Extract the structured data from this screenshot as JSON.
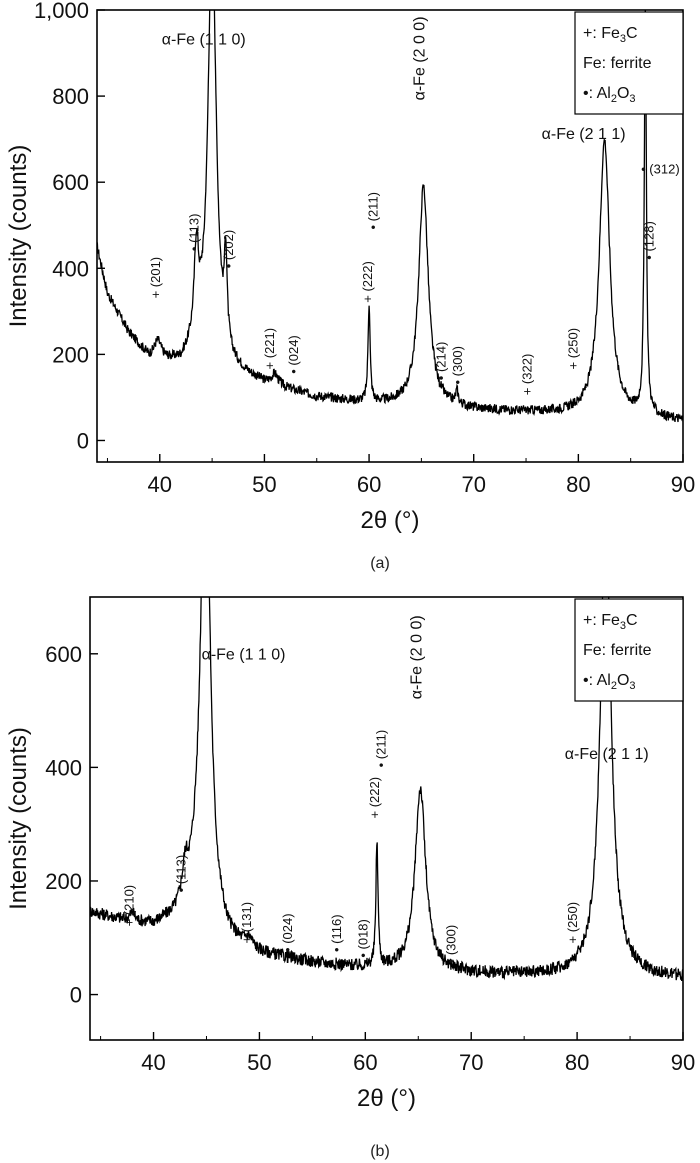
{
  "chart_data": [
    {
      "type": "line",
      "panel": "(a)",
      "xlabel": "2θ (°)",
      "ylabel": "Intensity (counts)",
      "xlim": [
        34,
        90
      ],
      "ylim": [
        -50,
        1000
      ],
      "xticks": [
        40,
        50,
        60,
        70,
        80,
        90
      ],
      "yticks": [
        0,
        200,
        400,
        600,
        800,
        1000
      ],
      "ytick_labels": [
        "0",
        "200",
        "400",
        "600",
        "800",
        "1,000"
      ],
      "grid": false,
      "legend_position": "top-right",
      "legend": [
        {
          "symbol": "+",
          "pre": ": Fe",
          "sub": "3",
          "post": "C"
        },
        {
          "symbol": "Fe",
          "pre": ": ferrite",
          "sub": "",
          "post": ""
        },
        {
          "symbol": "•",
          "pre": ": Al",
          "sub": "2",
          "post": "O",
          "sub2": "3"
        }
      ],
      "peaks": [
        {
          "x": 45.0,
          "y": 1000,
          "w": 0.45
        },
        {
          "x": 65.2,
          "y": 510,
          "w": 0.55
        },
        {
          "x": 82.5,
          "y": 640,
          "w": 0.6
        },
        {
          "x": 86.4,
          "y": 940,
          "w": 0.12
        },
        {
          "x": 60.0,
          "y": 230,
          "w": 0.12
        },
        {
          "x": 46.3,
          "y": 200,
          "w": 0.15
        },
        {
          "x": 43.5,
          "y": 200,
          "w": 0.25
        },
        {
          "x": 39.8,
          "y": 40,
          "w": 0.4
        },
        {
          "x": 68.4,
          "y": 30,
          "w": 0.15
        },
        {
          "x": 51.0,
          "y": 25,
          "w": 0.4
        }
      ],
      "baseline": [
        [
          34,
          450
        ],
        [
          35,
          340
        ],
        [
          37,
          250
        ],
        [
          39,
          190
        ],
        [
          42,
          175
        ],
        [
          44,
          220
        ],
        [
          47,
          160
        ],
        [
          50,
          130
        ],
        [
          55,
          100
        ],
        [
          60,
          85
        ],
        [
          65,
          80
        ],
        [
          70,
          70
        ],
        [
          75,
          65
        ],
        [
          80,
          60
        ],
        [
          85,
          55
        ],
        [
          90,
          45
        ]
      ],
      "annotations": [
        {
          "x": 40.0,
          "y": 330,
          "text": "+ (201)",
          "rot": true
        },
        {
          "x": 43.7,
          "y": 440,
          "text": "• (113)",
          "rot": true
        },
        {
          "x": 47.0,
          "y": 400,
          "text": "• (202)",
          "rot": true
        },
        {
          "x": 50.9,
          "y": 165,
          "text": "+ (221)",
          "rot": true
        },
        {
          "x": 53.2,
          "y": 155,
          "text": "• (024)",
          "rot": true
        },
        {
          "x": 60.3,
          "y": 320,
          "text": "+ (222)",
          "rot": true
        },
        {
          "x": 60.8,
          "y": 490,
          "text": "• (211)",
          "rot": true
        },
        {
          "x": 67.3,
          "y": 140,
          "text": "• (214)",
          "rot": true
        },
        {
          "x": 68.9,
          "y": 130,
          "text": "• (300)",
          "rot": true
        },
        {
          "x": 75.5,
          "y": 105,
          "text": "+ (322)",
          "rot": true
        },
        {
          "x": 79.9,
          "y": 165,
          "text": "+ (250)",
          "rot": true
        },
        {
          "x": 87.2,
          "y": 420,
          "text": "• (128)",
          "rot": true
        },
        {
          "x": 86.0,
          "y": 620,
          "text": "• (312)",
          "rot": false
        },
        {
          "x": 44.2,
          "y": 920,
          "text": "α-Fe (1 1 0)",
          "rot": false,
          "big": true
        },
        {
          "x": 65.3,
          "y": 790,
          "text": "α-Fe (2 0 0)",
          "rot": true,
          "big": true
        },
        {
          "x": 80.5,
          "y": 700,
          "text": "α-Fe (2 1 1)",
          "rot": false,
          "big": true
        }
      ]
    },
    {
      "type": "line",
      "panel": "(b)",
      "xlabel": "2θ (°)",
      "ylabel": "Intensity (counts)",
      "xlim": [
        34,
        90
      ],
      "ylim": [
        -80,
        700
      ],
      "xticks": [
        40,
        50,
        60,
        70,
        80,
        90
      ],
      "yticks": [
        0,
        200,
        400,
        600
      ],
      "ytick_labels": [
        "0",
        "200",
        "400",
        "600"
      ],
      "grid": false,
      "legend_position": "top-right",
      "legend": [
        {
          "symbol": "+",
          "pre": ": Fe",
          "sub": "3",
          "post": "C"
        },
        {
          "symbol": "Fe",
          "pre": ": ferrite",
          "sub": "",
          "post": ""
        },
        {
          "symbol": "•",
          "pre": ": Al",
          "sub": "2",
          "post": "O",
          "sub2": "3"
        }
      ],
      "peaks": [
        {
          "x": 44.9,
          "y": 900,
          "w": 0.5
        },
        {
          "x": 65.2,
          "y": 320,
          "w": 0.6
        },
        {
          "x": 82.7,
          "y": 820,
          "w": 0.6
        },
        {
          "x": 61.1,
          "y": 220,
          "w": 0.12
        },
        {
          "x": 43.0,
          "y": 50,
          "w": 0.3
        },
        {
          "x": 49.0,
          "y": 15,
          "w": 0.4
        },
        {
          "x": 38.0,
          "y": 15,
          "w": 0.3
        }
      ],
      "baseline": [
        [
          34,
          145
        ],
        [
          36,
          135
        ],
        [
          38,
          125
        ],
        [
          40,
          120
        ],
        [
          42,
          130
        ],
        [
          44,
          170
        ],
        [
          47,
          90
        ],
        [
          50,
          70
        ],
        [
          55,
          55
        ],
        [
          60,
          45
        ],
        [
          65,
          42
        ],
        [
          70,
          36
        ],
        [
          75,
          33
        ],
        [
          80,
          33
        ],
        [
          85,
          32
        ],
        [
          90,
          28
        ]
      ],
      "annotations": [
        {
          "x": 38.1,
          "y": 120,
          "text": "+ (210)",
          "rot": true
        },
        {
          "x": 43.0,
          "y": 180,
          "text": "• (113)",
          "rot": true
        },
        {
          "x": 49.2,
          "y": 90,
          "text": "+ (131)",
          "rot": true
        },
        {
          "x": 53.1,
          "y": 75,
          "text": "• (024)",
          "rot": true
        },
        {
          "x": 57.7,
          "y": 75,
          "text": "• (116)",
          "rot": true
        },
        {
          "x": 60.2,
          "y": 65,
          "text": "• (018)",
          "rot": true
        },
        {
          "x": 61.3,
          "y": 310,
          "text": "+ (222)",
          "rot": true
        },
        {
          "x": 61.9,
          "y": 400,
          "text": "• (211)",
          "rot": true
        },
        {
          "x": 68.5,
          "y": 55,
          "text": "• (300)",
          "rot": true
        },
        {
          "x": 80.0,
          "y": 90,
          "text": "+ (250)",
          "rot": true
        },
        {
          "x": 48.5,
          "y": 590,
          "text": "α-Fe (1 1 0)",
          "rot": false,
          "big": true
        },
        {
          "x": 65.3,
          "y": 520,
          "text": "α-Fe (2 0 0)",
          "rot": true,
          "big": true
        },
        {
          "x": 82.8,
          "y": 415,
          "text": "α-Fe (2 1 1)",
          "rot": false,
          "big": true
        }
      ]
    }
  ],
  "captions": [
    "(a)",
    "(b)"
  ]
}
